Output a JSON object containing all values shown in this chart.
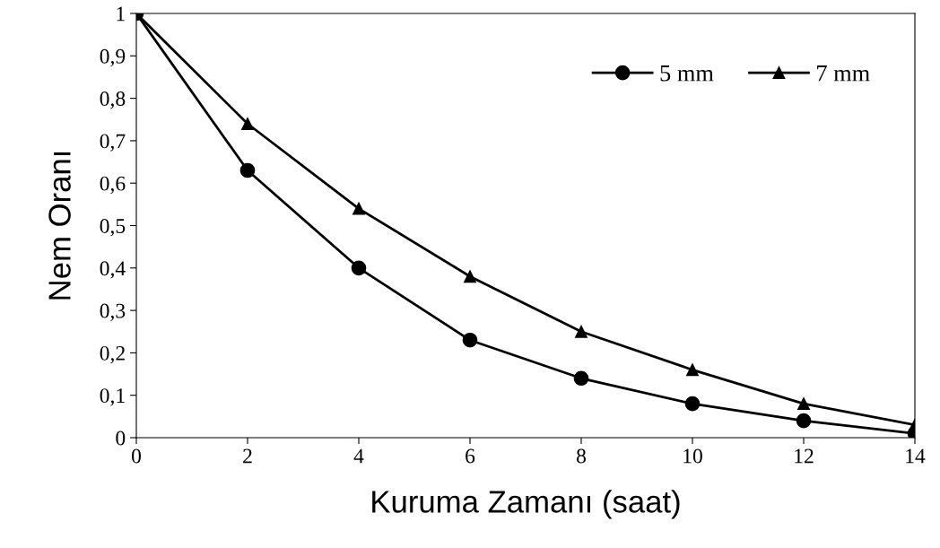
{
  "chart_data": {
    "type": "line",
    "xlabel": "Kuruma Zamanı (saat)",
    "ylabel": "Nem Oranı",
    "x": [
      0,
      2,
      4,
      6,
      8,
      10,
      12,
      14
    ],
    "series": [
      {
        "name": "5 mm",
        "color": "#000000",
        "marker": "circle",
        "values": [
          1,
          0.63,
          0.4,
          0.23,
          0.14,
          0.08,
          0.04,
          0.01
        ]
      },
      {
        "name": "7 mm",
        "color": "#000000",
        "marker": "triangle",
        "values": [
          1,
          0.74,
          0.54,
          0.38,
          0.25,
          0.16,
          0.08,
          0.03
        ]
      }
    ],
    "xlim": [
      0,
      14
    ],
    "xticks": [
      0,
      2,
      4,
      6,
      8,
      10,
      12,
      14
    ],
    "ylim": [
      0,
      1
    ],
    "yticks": [
      {
        "value": 0,
        "label": "0"
      },
      {
        "value": 0.1,
        "label": "0,1"
      },
      {
        "value": 0.2,
        "label": "0,2"
      },
      {
        "value": 0.3,
        "label": "0,3"
      },
      {
        "value": 0.4,
        "label": "0,4"
      },
      {
        "value": 0.5,
        "label": "0,5"
      },
      {
        "value": 0.6,
        "label": "0,6"
      },
      {
        "value": 0.7,
        "label": "0,7"
      },
      {
        "value": 0.8,
        "label": "0,8"
      },
      {
        "value": 0.9,
        "label": "0,9"
      },
      {
        "value": 1,
        "label": "1"
      }
    ],
    "grid": false,
    "legend": "top right",
    "line_style": "solid"
  }
}
